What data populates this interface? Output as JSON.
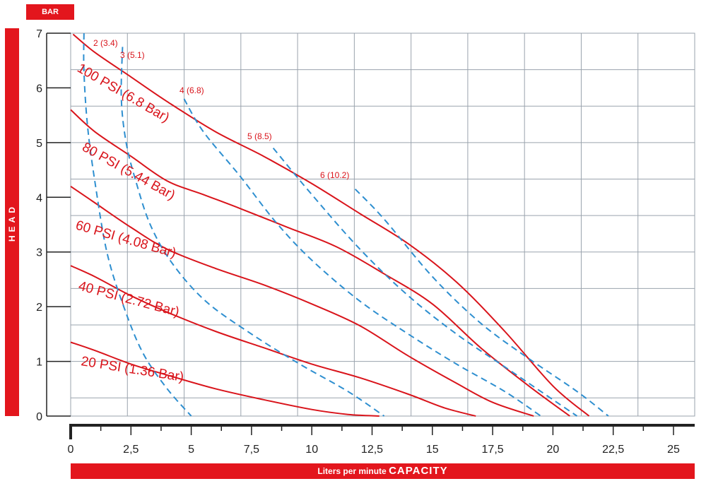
{
  "unit_badge": "BAR",
  "side_label": "HEAD",
  "bottom_label": {
    "prefix": "Liters per minute",
    "emphasis": "CAPACITY"
  },
  "colors": {
    "pressure": "#d9141b",
    "air": "#2e8fd0",
    "grid": "#9aa3ad",
    "badge": "#e3161d"
  },
  "chart_data": {
    "type": "line",
    "title": "",
    "xlabel": "Liters per minute CAPACITY",
    "ylabel": "HEAD",
    "y_unit": "BAR",
    "xlim": [
      0,
      25
    ],
    "ylim": [
      0,
      7
    ],
    "x_ticks": [
      "0",
      "2,5",
      "5",
      "7,5",
      "10",
      "12,5",
      "15",
      "17,5",
      "20",
      "22,5",
      "25"
    ],
    "y_ticks": [
      "0",
      "1",
      "2",
      "3",
      "4",
      "5",
      "6",
      "7"
    ],
    "grid": true,
    "series": [
      {
        "name": "100 PSI (6.8 Bar)",
        "kind": "pressure",
        "points": [
          [
            0.1,
            6.98
          ],
          [
            1.0,
            6.65
          ],
          [
            2.5,
            6.2
          ],
          [
            4.0,
            5.75
          ],
          [
            6.0,
            5.2
          ],
          [
            8.0,
            4.75
          ],
          [
            10.0,
            4.25
          ],
          [
            12.0,
            3.7
          ],
          [
            14.0,
            3.15
          ],
          [
            16.0,
            2.45
          ],
          [
            18.0,
            1.55
          ],
          [
            20.0,
            0.55
          ],
          [
            21.5,
            0.0
          ]
        ]
      },
      {
        "name": "80 PSI (5.44 Bar)",
        "kind": "pressure",
        "points": [
          [
            0.0,
            5.6
          ],
          [
            1.0,
            5.2
          ],
          [
            2.5,
            4.75
          ],
          [
            4.0,
            4.3
          ],
          [
            5.5,
            4.05
          ],
          [
            7.0,
            3.8
          ],
          [
            9.0,
            3.45
          ],
          [
            11.0,
            3.1
          ],
          [
            13.0,
            2.6
          ],
          [
            15.0,
            2.05
          ],
          [
            17.0,
            1.25
          ],
          [
            19.0,
            0.55
          ],
          [
            20.7,
            0.0
          ]
        ]
      },
      {
        "name": "60 PSI (4.08 Bar)",
        "kind": "pressure",
        "points": [
          [
            0.0,
            4.2
          ],
          [
            1.0,
            3.9
          ],
          [
            2.5,
            3.45
          ],
          [
            4.0,
            3.05
          ],
          [
            6.0,
            2.7
          ],
          [
            8.0,
            2.4
          ],
          [
            10.0,
            2.05
          ],
          [
            12.0,
            1.65
          ],
          [
            14.0,
            1.1
          ],
          [
            16.0,
            0.6
          ],
          [
            17.5,
            0.25
          ],
          [
            19.2,
            0.0
          ]
        ]
      },
      {
        "name": "40 PSI (2.72 Bar)",
        "kind": "pressure",
        "points": [
          [
            0.0,
            2.75
          ],
          [
            1.0,
            2.55
          ],
          [
            2.5,
            2.2
          ],
          [
            4.0,
            1.9
          ],
          [
            6.0,
            1.55
          ],
          [
            8.0,
            1.25
          ],
          [
            10.0,
            0.95
          ],
          [
            12.0,
            0.7
          ],
          [
            14.0,
            0.4
          ],
          [
            15.5,
            0.15
          ],
          [
            16.8,
            0.0
          ]
        ]
      },
      {
        "name": "20 PSI (1.36 Bar)",
        "kind": "pressure",
        "points": [
          [
            0.0,
            1.35
          ],
          [
            1.0,
            1.2
          ],
          [
            2.5,
            0.95
          ],
          [
            4.0,
            0.75
          ],
          [
            6.0,
            0.5
          ],
          [
            8.0,
            0.3
          ],
          [
            10.0,
            0.12
          ],
          [
            11.5,
            0.03
          ],
          [
            12.8,
            0.0
          ]
        ]
      },
      {
        "name": "2 (3.4)",
        "kind": "air",
        "points": [
          [
            0.55,
            7.0
          ],
          [
            0.55,
            6.3
          ],
          [
            0.7,
            5.3
          ],
          [
            1.0,
            4.3
          ],
          [
            1.5,
            3.0
          ],
          [
            2.2,
            2.0
          ],
          [
            3.0,
            1.15
          ],
          [
            4.0,
            0.5
          ],
          [
            5.0,
            0.0
          ]
        ]
      },
      {
        "name": "3 (5.1)",
        "kind": "air",
        "points": [
          [
            2.15,
            6.75
          ],
          [
            2.1,
            5.8
          ],
          [
            2.3,
            5.0
          ],
          [
            2.7,
            4.3
          ],
          [
            3.3,
            3.5
          ],
          [
            4.2,
            2.8
          ],
          [
            5.6,
            2.1
          ],
          [
            7.5,
            1.5
          ],
          [
            9.5,
            0.95
          ],
          [
            11.5,
            0.45
          ],
          [
            13.0,
            0.0
          ]
        ]
      },
      {
        "name": "4 (6.8)",
        "kind": "air",
        "points": [
          [
            4.7,
            5.8
          ],
          [
            5.5,
            5.2
          ],
          [
            7.0,
            4.4
          ],
          [
            8.5,
            3.55
          ],
          [
            10.0,
            2.85
          ],
          [
            12.0,
            2.1
          ],
          [
            14.0,
            1.5
          ],
          [
            16.0,
            0.95
          ],
          [
            18.0,
            0.45
          ],
          [
            19.5,
            0.0
          ]
        ]
      },
      {
        "name": "5 (8.5)",
        "kind": "air",
        "points": [
          [
            8.4,
            4.9
          ],
          [
            10.0,
            4.05
          ],
          [
            12.0,
            3.05
          ],
          [
            14.0,
            2.2
          ],
          [
            16.0,
            1.5
          ],
          [
            18.0,
            0.9
          ],
          [
            20.0,
            0.3
          ],
          [
            21.0,
            0.0
          ]
        ]
      },
      {
        "name": "6 (10.2)",
        "kind": "air",
        "points": [
          [
            11.8,
            4.15
          ],
          [
            13.0,
            3.6
          ],
          [
            15.0,
            2.55
          ],
          [
            17.0,
            1.7
          ],
          [
            19.0,
            1.05
          ],
          [
            21.0,
            0.45
          ],
          [
            22.3,
            0.0
          ]
        ]
      }
    ],
    "annotations": [
      {
        "text": "100 PSI (6.8 Bar)",
        "series": "100 PSI (6.8 Bar)"
      },
      {
        "text": "80 PSI (5.44 Bar)",
        "series": "80 PSI (5.44 Bar)"
      },
      {
        "text": "60 PSI (4.08 Bar)",
        "series": "60 PSI (4.08 Bar)"
      },
      {
        "text": "40 PSI (2.72 Bar)",
        "series": "40 PSI (2.72 Bar)"
      },
      {
        "text": "20 PSI (1.36 Bar)",
        "series": "20 PSI (1.36 Bar)"
      },
      {
        "text": "2 (3.4)",
        "series": "2 (3.4)"
      },
      {
        "text": "3 (5.1)",
        "series": "3 (5.1)"
      },
      {
        "text": "4 (6.8)",
        "series": "4 (6.8)"
      },
      {
        "text": "5 (8.5)",
        "series": "5 (8.5)"
      },
      {
        "text": "6 (10.2)",
        "series": "6 (10.2)"
      }
    ]
  }
}
